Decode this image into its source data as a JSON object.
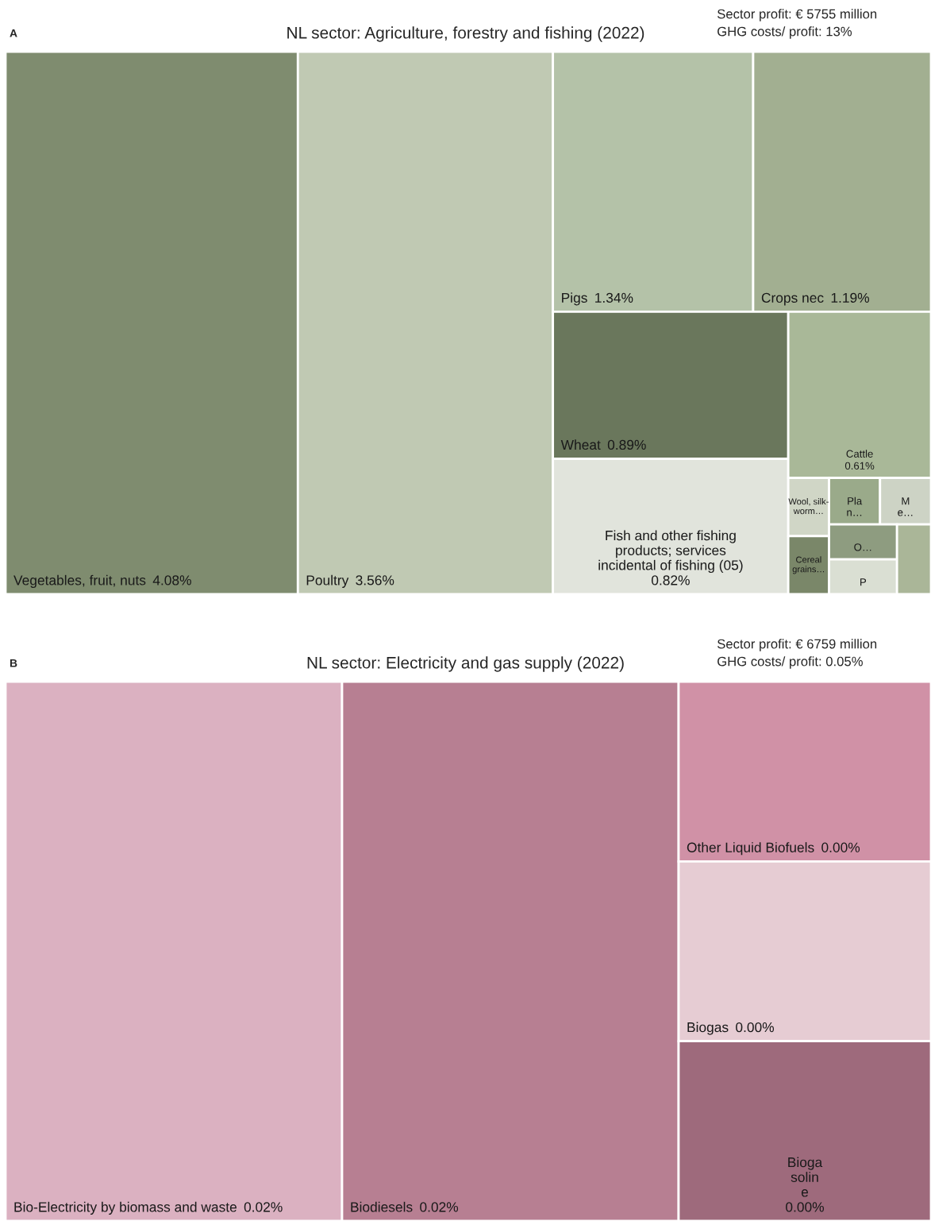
{
  "chart_data": [
    {
      "type": "other",
      "title": "NL sector: Agriculture, forestry and fishing (2022)",
      "annotations": [
        "A",
        "Sector profit: € 5755 million",
        "GHG costs/ profit: 13%"
      ],
      "categories": [
        "Vegetables, fruit, nuts",
        "Poultry",
        "Pigs",
        "Crops nec",
        "Wheat",
        "Fish and other fishing\nproducts; services\nincidental of fishing (05)",
        "Cattle",
        "Wool, silk-\nworm…",
        "Cereal\ngrains…",
        "Pla\nn…",
        "M\ne…",
        "O…",
        "P",
        null
      ],
      "value_labels": [
        "4.08%",
        "3.56%",
        "1.34%",
        "1.19%",
        "0.89%",
        "0.82%",
        "0.61%",
        null,
        null,
        null,
        null,
        null,
        null,
        null
      ],
      "values": [
        4.08,
        3.56,
        1.34,
        1.19,
        0.89,
        0.82,
        0.61,
        null,
        null,
        null,
        null,
        null,
        null,
        null
      ],
      "colors": [
        "#7f8c6f",
        "#c0c9b3",
        "#b4c2a8",
        "#a2af91",
        "#6a775c",
        "#e1e4dc",
        "#a9b898",
        "#d0d6c6",
        "#7a8769",
        "#9aaa8a",
        "#cdd3c5",
        "#8e9c80",
        "#dadfd3",
        "#aab698"
      ]
    },
    {
      "type": "other",
      "title": "NL sector: Electricity and gas supply (2022)",
      "annotations": [
        "B",
        "Sector profit: € 6759 million",
        "GHG costs/ profit: 0.05%"
      ],
      "categories": [
        "Bio-Electricity by biomass and waste",
        "Biodiesels",
        "Other Liquid Biofuels",
        "Biogas",
        "Bioga\nsolin\ne"
      ],
      "value_labels": [
        "0.02%",
        "0.02%",
        "0.00%",
        "0.00%",
        "0.00%"
      ],
      "values": [
        0.02,
        0.02,
        0.0,
        0.0,
        0.0
      ],
      "colors": [
        "#dbb1c1",
        "#b77f92",
        "#d091a6",
        "#e6ccd3",
        "#9e6a7c"
      ]
    }
  ]
}
